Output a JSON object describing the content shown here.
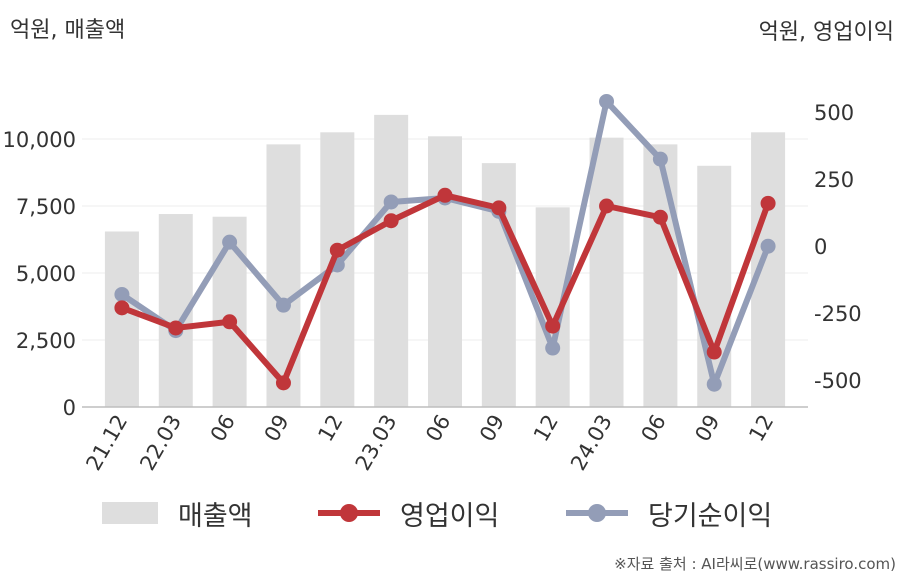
{
  "chart_data": {
    "type": "bar+line",
    "left_axis_label": "억원, 매출액",
    "right_axis_label": "억원, 영업이익",
    "categories": [
      "21.12",
      "22.03",
      "06",
      "09",
      "12",
      "23.03",
      "06",
      "09",
      "12",
      "24.03",
      "06",
      "09",
      "12"
    ],
    "left_ticks": [
      "0",
      "2,500",
      "5,000",
      "7,500",
      "10,000"
    ],
    "right_ticks": [
      "-500",
      "-250",
      "0",
      "250",
      "500"
    ],
    "ylim_left": [
      0,
      12500
    ],
    "ylim_right": [
      -600,
      650
    ],
    "bar_series": {
      "name": "매출액",
      "color": "#dedede",
      "values": [
        6550,
        7200,
        7100,
        9800,
        10250,
        10900,
        10100,
        9100,
        7450,
        10050,
        9800,
        9000,
        10250
      ]
    },
    "line_series": [
      {
        "name": "영업이익",
        "color": "#c0363a",
        "values": [
          -230,
          -305,
          -282,
          -510,
          -15,
          95,
          190,
          143,
          -298,
          150,
          108,
          -395,
          160
        ]
      },
      {
        "name": "당기순이익",
        "color": "#939db7",
        "values": [
          -180,
          -315,
          15,
          -220,
          -70,
          165,
          180,
          130,
          -380,
          540,
          325,
          -515,
          0
        ]
      }
    ],
    "grid": true
  },
  "legend": {
    "bar": "매출액",
    "line1": "영업이익",
    "line2": "당기순이익"
  },
  "source": "※자료 출처 : AI라씨로(www.rassiro.com)"
}
